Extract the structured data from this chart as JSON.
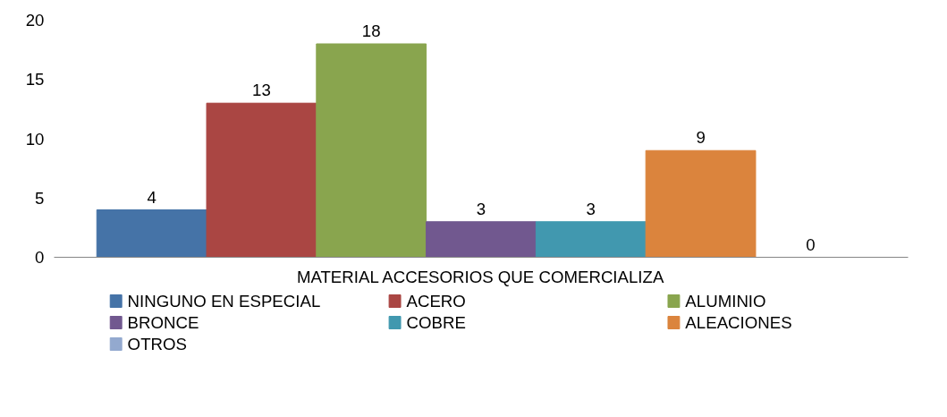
{
  "chart_data": {
    "type": "bar",
    "categories": [
      "MATERIAL ACCESORIOS QUE COMERCIALIZA"
    ],
    "series": [
      {
        "name": "NINGUNO EN ESPECIAL",
        "color": "#4573a7",
        "values": [
          4
        ]
      },
      {
        "name": "ACERO",
        "color": "#aa4643",
        "values": [
          13
        ]
      },
      {
        "name": "ALUMINIO",
        "color": "#89a54e",
        "values": [
          18
        ]
      },
      {
        "name": "BRONCE",
        "color": "#71588f",
        "values": [
          3
        ]
      },
      {
        "name": "COBRE",
        "color": "#4198af",
        "values": [
          3
        ]
      },
      {
        "name": "ALEACIONES",
        "color": "#db843d",
        "values": [
          9
        ]
      },
      {
        "name": "OTROS",
        "color": "#93a9cf",
        "values": [
          0
        ]
      }
    ],
    "ylim": [
      0,
      20
    ],
    "yticks": [
      0,
      5,
      10,
      15,
      20
    ],
    "grid": false,
    "legend": "bottom",
    "data_labels": true
  }
}
